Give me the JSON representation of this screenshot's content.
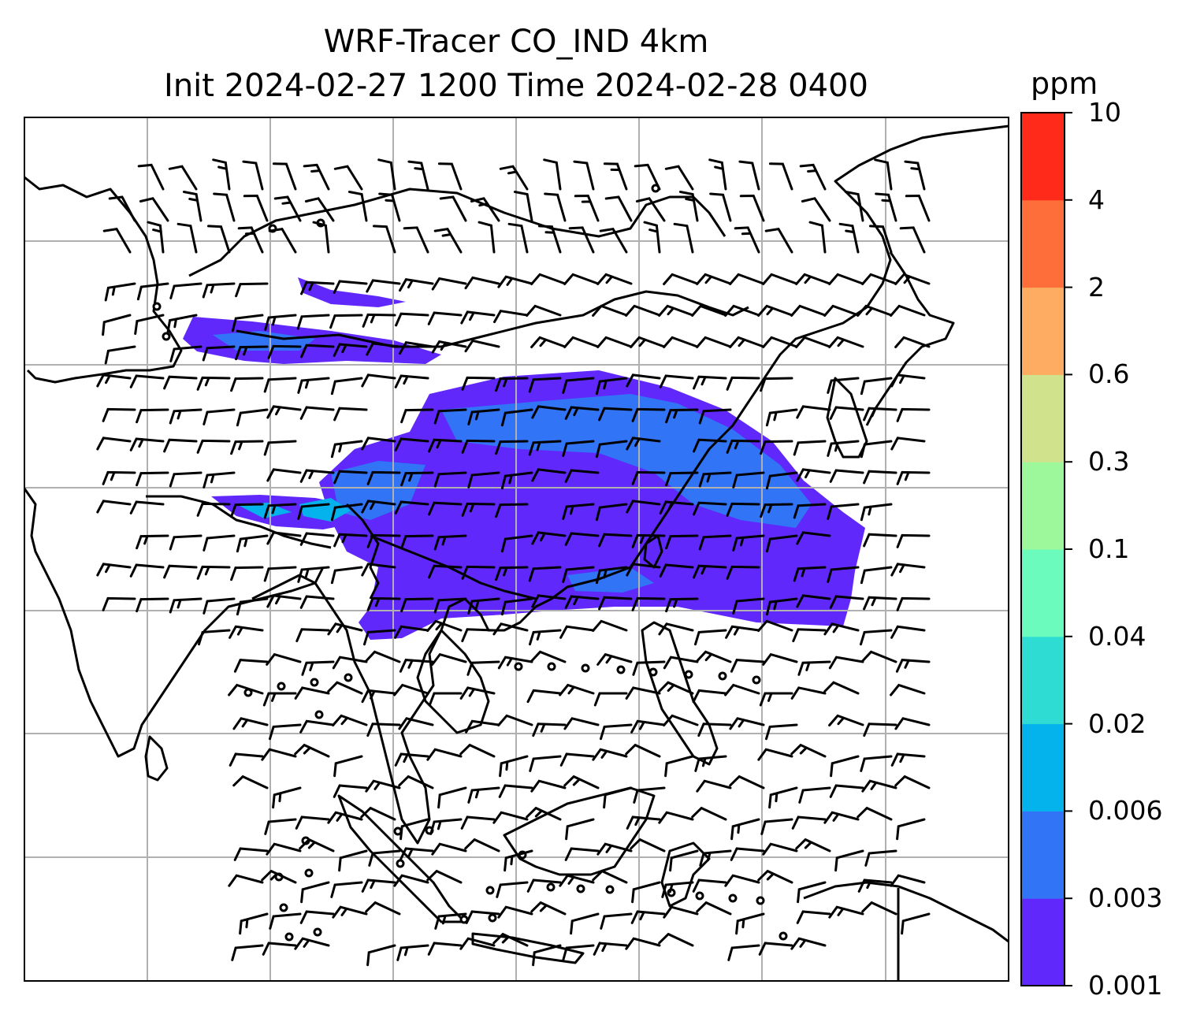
{
  "title": {
    "line1": "WRF-Tracer CO_IND 4km",
    "line2": "Init 2024-02-27 1200 Time 2024-02-28 0400"
  },
  "colorbar": {
    "units": "ppm",
    "ticks": [
      "0.001",
      "0.003",
      "0.006",
      "0.02",
      "0.04",
      "0.1",
      "0.3",
      "0.6",
      "2",
      "4",
      "10"
    ],
    "colors": [
      "#6128fb",
      "#3174f6",
      "#04b2ec",
      "#2edcd4",
      "#6afbbd",
      "#9cf89a",
      "#d0e28c",
      "#fdac61",
      "#fe6e3b",
      "#ff2a1a"
    ]
  },
  "map": {
    "variable": "CO_IND",
    "gridlines": true,
    "coastline_color": "#000000",
    "gridline_color": "#b0b0b0",
    "wind_barbs": true
  }
}
